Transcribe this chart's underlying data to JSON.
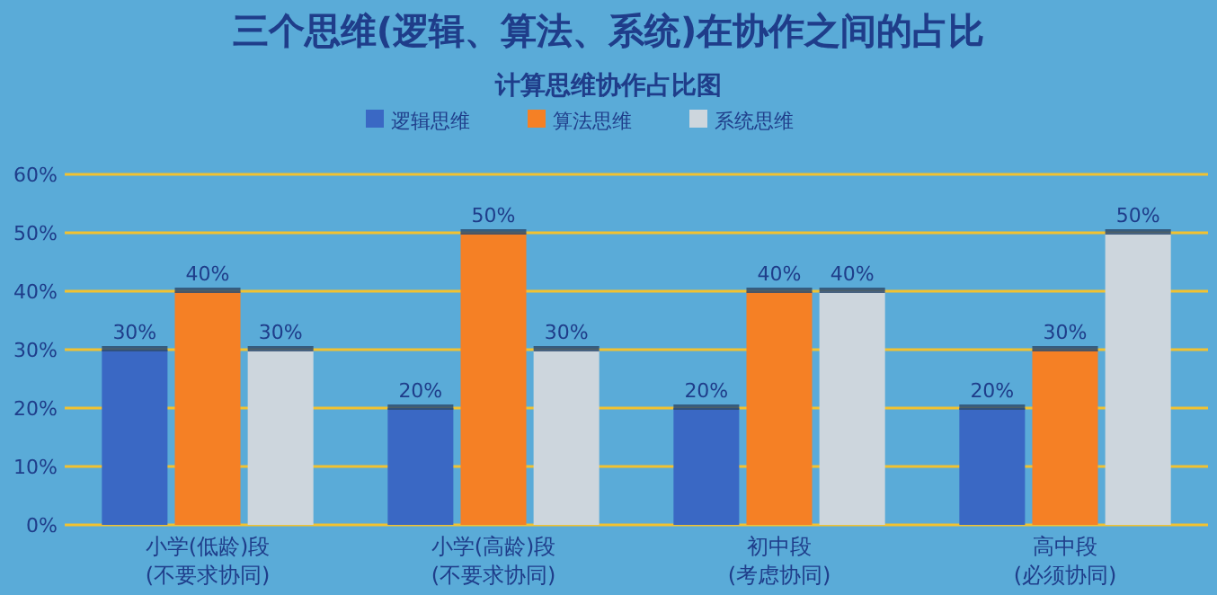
{
  "chart_data": {
    "type": "bar",
    "title": "三个思维(逻辑、算法、系统)在协作之间的占比",
    "subtitle": "计算思维协作占比图",
    "categories": [
      "小学(低龄)段\n(不要求协同)",
      "小学(高龄)段\n(不要求协同)",
      "初中段\n(考虑协同)",
      "高中段\n(必须协同)"
    ],
    "series": [
      {
        "name": "逻辑思维",
        "color": "#3a68c4",
        "values": [
          30,
          20,
          20,
          20
        ],
        "value_labels": [
          "30%",
          "20%",
          "20%",
          "20%"
        ]
      },
      {
        "name": "算法思维",
        "color": "#f58025",
        "values": [
          40,
          50,
          40,
          30
        ],
        "value_labels": [
          "40%",
          "50%",
          "40%",
          "30%"
        ]
      },
      {
        "name": "系统思维",
        "color": "#cdd6dd",
        "values": [
          30,
          30,
          40,
          50
        ],
        "value_labels": [
          "30%",
          "30%",
          "40%",
          "50%"
        ]
      }
    ],
    "ylim": [
      0,
      60
    ],
    "yticks": [
      {
        "value": 0,
        "label": "0%"
      },
      {
        "value": 10,
        "label": "10%"
      },
      {
        "value": 20,
        "label": "20%"
      },
      {
        "value": 30,
        "label": "30%"
      },
      {
        "value": 40,
        "label": "40%"
      },
      {
        "value": 50,
        "label": "50%"
      },
      {
        "value": 60,
        "label": "60%"
      }
    ],
    "grid": "y",
    "legend": "top"
  }
}
